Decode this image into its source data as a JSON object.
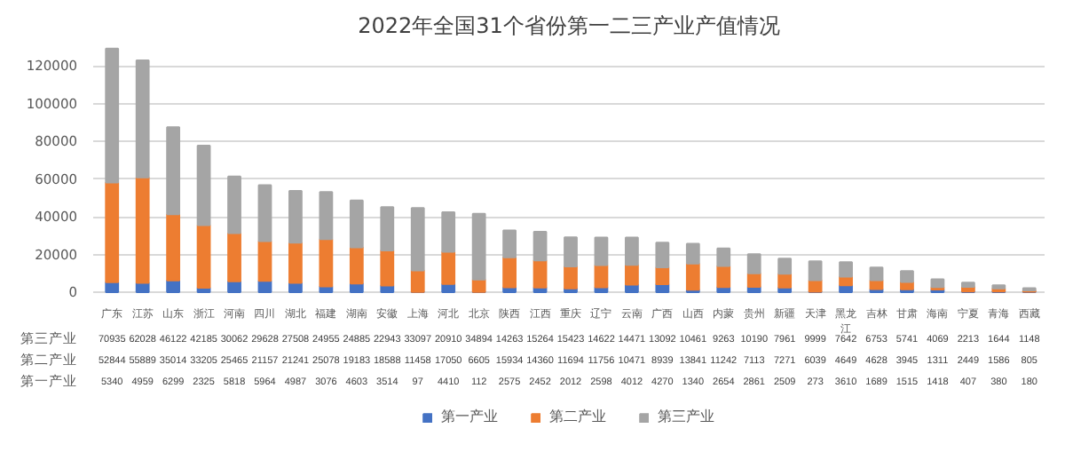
{
  "chart_data": {
    "type": "bar",
    "title": "2022年全国31个省份第一二三产业产值情况",
    "stacked": true,
    "data_labels": true,
    "grid": "y",
    "legend": "bottom",
    "categories": [
      "广东",
      "江苏",
      "山东",
      "浙江",
      "河南",
      "四川",
      "湖北",
      "福建",
      "湖南",
      "安徽",
      "上海",
      "河北",
      "北京",
      "陕西",
      "江西",
      "重庆",
      "辽宁",
      "云南",
      "广西",
      "山西",
      "内蒙",
      "贵州",
      "新疆",
      "天津",
      "黑龙江",
      "吉林",
      "甘肃",
      "海南",
      "宁夏",
      "青海",
      "西藏"
    ],
    "ylim": [
      0,
      130000
    ],
    "yticks": [
      0,
      20000,
      40000,
      60000,
      80000,
      100000,
      120000
    ],
    "series": [
      {
        "name": "第一产业",
        "color": "#4472c4",
        "values": [
          5340,
          4959,
          6299,
          2325,
          5818,
          5964,
          4987,
          3076,
          4603,
          3514,
          97,
          4410,
          112,
          2575,
          2452,
          2012,
          2598,
          4012,
          4270,
          1340,
          2654,
          2861,
          2509,
          273,
          3610,
          1689,
          1515,
          1418,
          407,
          380,
          180
        ]
      },
      {
        "name": "第二产业",
        "color": "#ed7d31",
        "values": [
          52844,
          55889,
          35014,
          33205,
          25465,
          21157,
          21241,
          25078,
          19183,
          18588,
          11458,
          17050,
          6605,
          15934,
          14360,
          11694,
          11756,
          10471,
          8939,
          13841,
          11242,
          7113,
          7271,
          6039,
          4649,
          4628,
          3945,
          1311,
          2449,
          1586,
          805
        ]
      },
      {
        "name": "第三产业",
        "color": "#a5a5a5",
        "values": [
          70935,
          62028,
          46122,
          42185,
          30062,
          29628,
          27508,
          24955,
          24885,
          22943,
          33097,
          20910,
          34894,
          14263,
          15264,
          15423,
          14622,
          14471,
          13092,
          10461,
          9263,
          10190,
          7961,
          9999,
          7642,
          6753,
          5741,
          4069,
          2213,
          1644,
          1148
        ]
      }
    ]
  }
}
